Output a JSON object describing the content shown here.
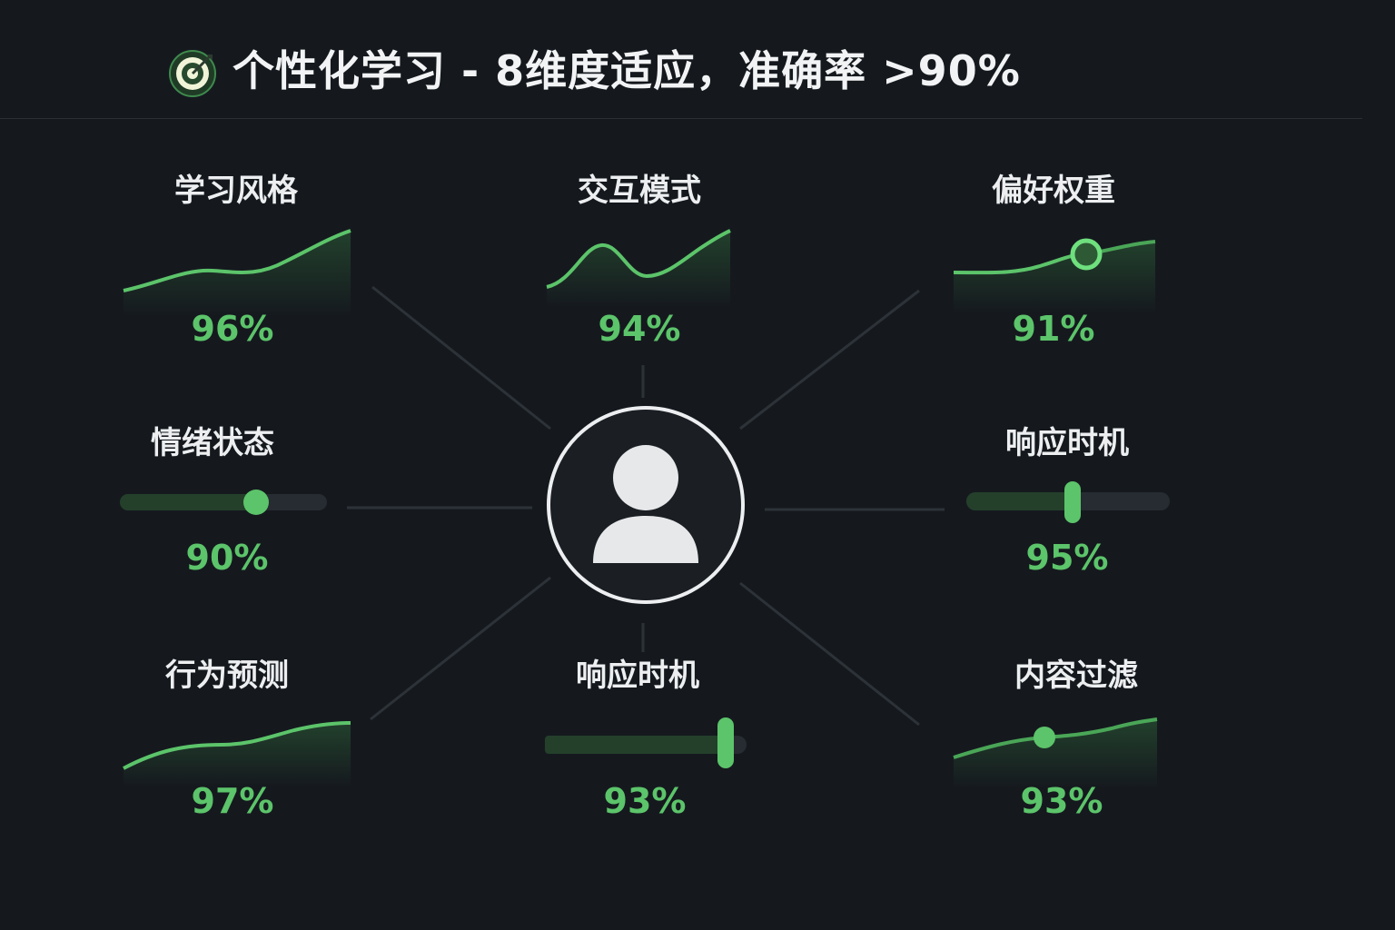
{
  "header": {
    "icon": "target-icon",
    "title": "个性化学习 - 8维度适应，准确率 >90%"
  },
  "center": {
    "icon": "user-avatar-icon"
  },
  "colors": {
    "background": "#15191e",
    "accent": "#5cc46a",
    "track": "#262c32",
    "text": "#eceef0"
  },
  "dimensions": [
    {
      "label": "学习风格",
      "value": "96%",
      "viz": "line-chart"
    },
    {
      "label": "交互模式",
      "value": "94%",
      "viz": "wave-chart"
    },
    {
      "label": "偏好权重",
      "value": "91%",
      "viz": "line-chart-with-marker"
    },
    {
      "label": "情绪状态",
      "value": "90%",
      "viz": "slider",
      "level": 0.6
    },
    {
      "label": "响应时机",
      "value": "95%",
      "viz": "slider-bar-handle",
      "level": 0.5
    },
    {
      "label": "行为预测",
      "value": "97%",
      "viz": "line-chart"
    },
    {
      "label": "响应时机",
      "value": "93%",
      "viz": "progress-bar",
      "level": 0.93
    },
    {
      "label": "内容过滤",
      "value": "93%",
      "viz": "line-chart-with-marker"
    }
  ]
}
